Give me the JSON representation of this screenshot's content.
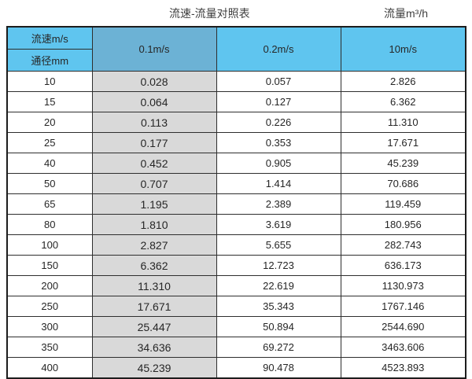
{
  "page_titles": {
    "left": "流速-流量对照表",
    "right": "流量m³/h"
  },
  "colors": {
    "header_blue": "#5fc5ef",
    "header_dark_blue": "#6cb2d5",
    "gray_column": "#d9d9d9",
    "border": "#2e2e2e",
    "text": "#262626"
  },
  "chart_data": {
    "type": "table",
    "title": "流速-流量对照表",
    "unit_label": "流量m³/h",
    "row_header_label": "流速m/s",
    "col_header_label": "通径mm",
    "velocity_columns": [
      "0.1m/s",
      "0.2m/s",
      "10m/s"
    ],
    "diameters_mm": [
      10,
      15,
      20,
      25,
      40,
      50,
      65,
      80,
      100,
      150,
      200,
      250,
      300,
      350,
      400
    ],
    "series": [
      {
        "name": "0.1m/s",
        "values": [
          "0.028",
          "0.064",
          "0.113",
          "0.177",
          "0.452",
          "0.707",
          "1.195",
          "1.810",
          "2.827",
          "6.362",
          "11.310",
          "17.671",
          "25.447",
          "34.636",
          "45.239"
        ]
      },
      {
        "name": "0.2m/s",
        "values": [
          "0.057",
          "0.127",
          "0.226",
          "0.353",
          "0.905",
          "1.414",
          "2.389",
          "3.619",
          "5.655",
          "12.723",
          "22.619",
          "35.343",
          "50.894",
          "69.272",
          "90.478"
        ]
      },
      {
        "name": "10m/s",
        "values": [
          "2.826",
          "6.362",
          "11.310",
          "17.671",
          "45.239",
          "70.686",
          "119.459",
          "180.956",
          "282.743",
          "636.173",
          "1130.973",
          "1767.146",
          "2544.690",
          "3463.606",
          "4523.893"
        ]
      }
    ]
  }
}
